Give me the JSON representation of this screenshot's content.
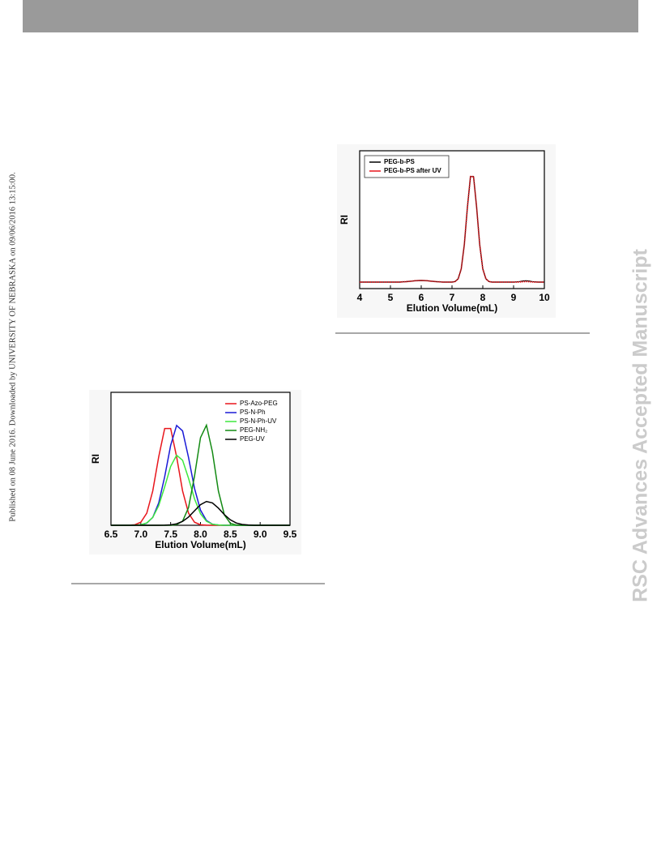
{
  "side_note": "Published on 08 June 2016. Downloaded by UNIVERSITY OF NEBRASKA on 09/06/2016 13:15:00.",
  "watermark": "RSC Advances Accepted Manuscript",
  "chart_data": [
    {
      "type": "line",
      "x_label": "Elution Volume(mL)",
      "y_label": "RI",
      "legend": "upper right",
      "xlim": [
        6.5,
        9.5
      ],
      "xticks": [
        6.5,
        {
          "value": 7,
          "label": "7.0"
        },
        7.5,
        {
          "value": 8,
          "label": "8.0"
        },
        8.5,
        {
          "value": 9,
          "label": "9.0"
        },
        9.5
      ],
      "ylim": [
        0,
        100
      ],
      "x": [
        6.5,
        6.6,
        6.7,
        6.8,
        6.9,
        7.0,
        7.1,
        7.2,
        7.3,
        7.4,
        7.5,
        7.6,
        7.7,
        7.8,
        7.9,
        8.0,
        8.1,
        8.2,
        8.3,
        8.4,
        8.5,
        8.6,
        8.7,
        8.8,
        8.9,
        9.0,
        9.1,
        9.2,
        9.3,
        9.4,
        9.5
      ],
      "series": [
        {
          "name": "PS-Azo-PEG",
          "color": "#e8161c",
          "values": [
            0,
            0,
            0,
            0.1,
            0.4,
            2.3,
            9.1,
            25.8,
            51.5,
            72.8,
            72.8,
            51.5,
            25.8,
            9.1,
            2.3,
            0.4,
            0.1,
            0,
            0,
            0,
            0,
            0,
            0,
            0,
            0,
            0,
            0,
            0,
            0,
            0,
            0
          ]
        },
        {
          "name": "PS-N-Ph",
          "color": "#1a1ad6",
          "values": [
            0,
            0,
            0,
            0,
            0,
            0.3,
            1.6,
            5.9,
            16.8,
            36.5,
            60.1,
            75.1,
            71,
            50.9,
            27.7,
            11.4,
            3.6,
            0.8,
            0.2,
            0,
            0,
            0,
            0,
            0,
            0,
            0,
            0,
            0,
            0,
            0,
            0
          ]
        },
        {
          "name": "PS-N-Ph-UV",
          "color": "#3ee83e",
          "values": [
            0,
            0,
            0,
            0,
            0.1,
            0.4,
            1.8,
            5.9,
            14.7,
            28.9,
            44.3,
            52.7,
            48.9,
            35.3,
            19.9,
            8.7,
            3,
            0.8,
            0.2,
            0,
            0,
            0,
            0,
            0,
            0,
            0,
            0,
            0,
            0,
            0,
            0
          ]
        },
        {
          "name": "PEG-NH₂",
          "color": "#138a13",
          "values": [
            0,
            0,
            0,
            0,
            0,
            0,
            0,
            0,
            0,
            0,
            0,
            0.5,
            3.1,
            13.3,
            37,
            65.9,
            75.3,
            55.2,
            25.8,
            7.8,
            1.5,
            0.2,
            0,
            0,
            0,
            0,
            0,
            0,
            0,
            0,
            0
          ]
        },
        {
          "name": "PEG-UV",
          "color": "#000000",
          "values": [
            0,
            0,
            0,
            0,
            0,
            0,
            0,
            0,
            0,
            0.1,
            0.3,
            1.1,
            2.9,
            6.2,
            10.9,
            15.5,
            17.9,
            16.8,
            12.9,
            8,
            4.1,
            1.7,
            0.6,
            0.2,
            0,
            0,
            0,
            0,
            0,
            0,
            0
          ]
        }
      ]
    },
    {
      "type": "line",
      "x_label": "Elution Volume(mL)",
      "y_label": "RI",
      "legend": "upper left",
      "xlim": [
        4,
        10
      ],
      "xticks": [
        4,
        5,
        6,
        7,
        8,
        9,
        10
      ],
      "ylim": [
        0,
        100
      ],
      "x": [
        4.0,
        4.1,
        4.2,
        4.3,
        4.4,
        4.5,
        4.6,
        4.7,
        4.8,
        4.9,
        5.0,
        5.1,
        5.2,
        5.3,
        5.4,
        5.5,
        5.6,
        5.7,
        5.8,
        5.9,
        6.0,
        6.1,
        6.2,
        6.3,
        6.4,
        6.5,
        6.6,
        6.7,
        6.8,
        6.9,
        7.0,
        7.1,
        7.2,
        7.3,
        7.4,
        7.5,
        7.6,
        7.7,
        7.8,
        7.9,
        8.0,
        8.1,
        8.2,
        8.3,
        8.4,
        8.5,
        8.6,
        8.7,
        8.8,
        8.9,
        9.0,
        9.1,
        9.2,
        9.3,
        9.4,
        9.5,
        9.6,
        9.7,
        9.8,
        9.9,
        10.0
      ],
      "series": [
        {
          "name": "PEG-b-PS",
          "color": "#000000",
          "values": [
            4.7,
            4.7,
            4.7,
            4.7,
            4.7,
            4.7,
            4.7,
            4.7,
            4.7,
            4.7,
            4.7,
            4.7,
            4.7,
            4.7,
            4.9,
            5.0,
            5.2,
            5.4,
            5.7,
            5.8,
            5.9,
            5.8,
            5.7,
            5.4,
            5.2,
            5.0,
            4.9,
            4.7,
            4.7,
            4.7,
            4.7,
            5.1,
            7.1,
            14.3,
            31.9,
            58.9,
            81.3,
            81.3,
            58.9,
            31.9,
            14.3,
            7.1,
            5.1,
            4.7,
            4.7,
            4.7,
            4.7,
            4.7,
            4.7,
            4.7,
            4.7,
            4.9,
            5.1,
            5.5,
            5.7,
            5.5,
            5.1,
            4.9,
            4.7,
            4.7,
            4.7
          ]
        },
        {
          "name": "PEG-b-PS after UV",
          "color": "#e8161c",
          "values": [
            4.7,
            4.7,
            4.7,
            4.7,
            4.7,
            4.7,
            4.7,
            4.7,
            4.7,
            4.7,
            4.7,
            4.7,
            4.7,
            4.7,
            4.9,
            5.0,
            5.2,
            5.4,
            5.7,
            5.8,
            5.9,
            5.8,
            5.7,
            5.4,
            5.2,
            5.0,
            4.9,
            4.7,
            4.7,
            4.7,
            4.7,
            5.1,
            7.1,
            14.3,
            31.9,
            58.9,
            81.3,
            81.3,
            58.9,
            31.9,
            14.3,
            7.1,
            5.1,
            4.7,
            4.7,
            4.7,
            4.7,
            4.7,
            4.7,
            4.7,
            4.7,
            4.7,
            4.8,
            5.0,
            5.1,
            5.0,
            4.8,
            4.7,
            4.7,
            4.7,
            4.7
          ]
        }
      ]
    }
  ]
}
